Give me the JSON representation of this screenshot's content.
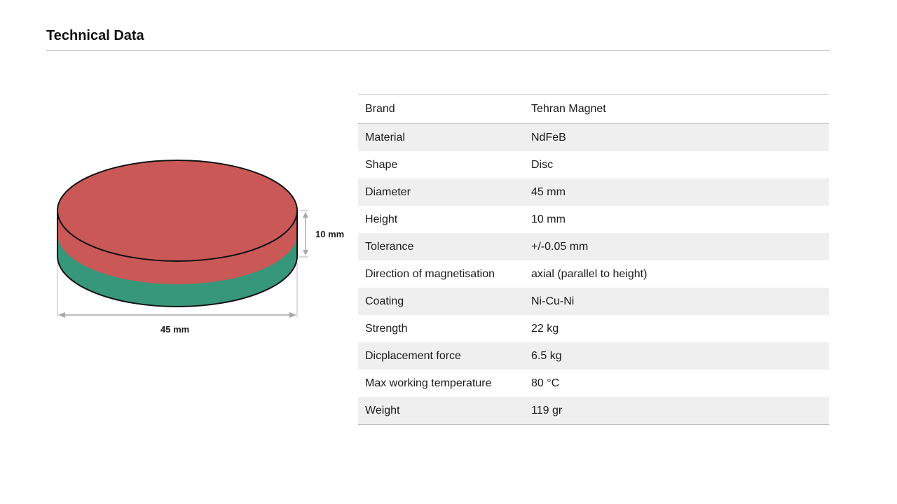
{
  "header": {
    "title": "Technical Data"
  },
  "diagram": {
    "height_label": "10 mm",
    "diameter_label": "45 mm",
    "colors": {
      "top_pole": "#c95856",
      "bottom_pole": "#37977a",
      "dimension_line": "#b0b0b0"
    }
  },
  "specs": [
    {
      "label": "Brand",
      "value": "Tehran Magnet"
    },
    {
      "label": "Material",
      "value": "NdFeB"
    },
    {
      "label": "Shape",
      "value": "Disc"
    },
    {
      "label": "Diameter",
      "value": "45 mm"
    },
    {
      "label": "Height",
      "value": "10 mm"
    },
    {
      "label": "Tolerance",
      "value": "+/-0.05 mm"
    },
    {
      "label": "Direction of magnetisation",
      "value": "axial (parallel to height)"
    },
    {
      "label": "Coating",
      "value": "Ni-Cu-Ni"
    },
    {
      "label": "Strength",
      "value": "22 kg"
    },
    {
      "label": "Dicplacement force",
      "value": "6.5 kg"
    },
    {
      "label": "Max working temperature",
      "value": "80 °C"
    },
    {
      "label": "Weight",
      "value": "119 gr"
    }
  ]
}
